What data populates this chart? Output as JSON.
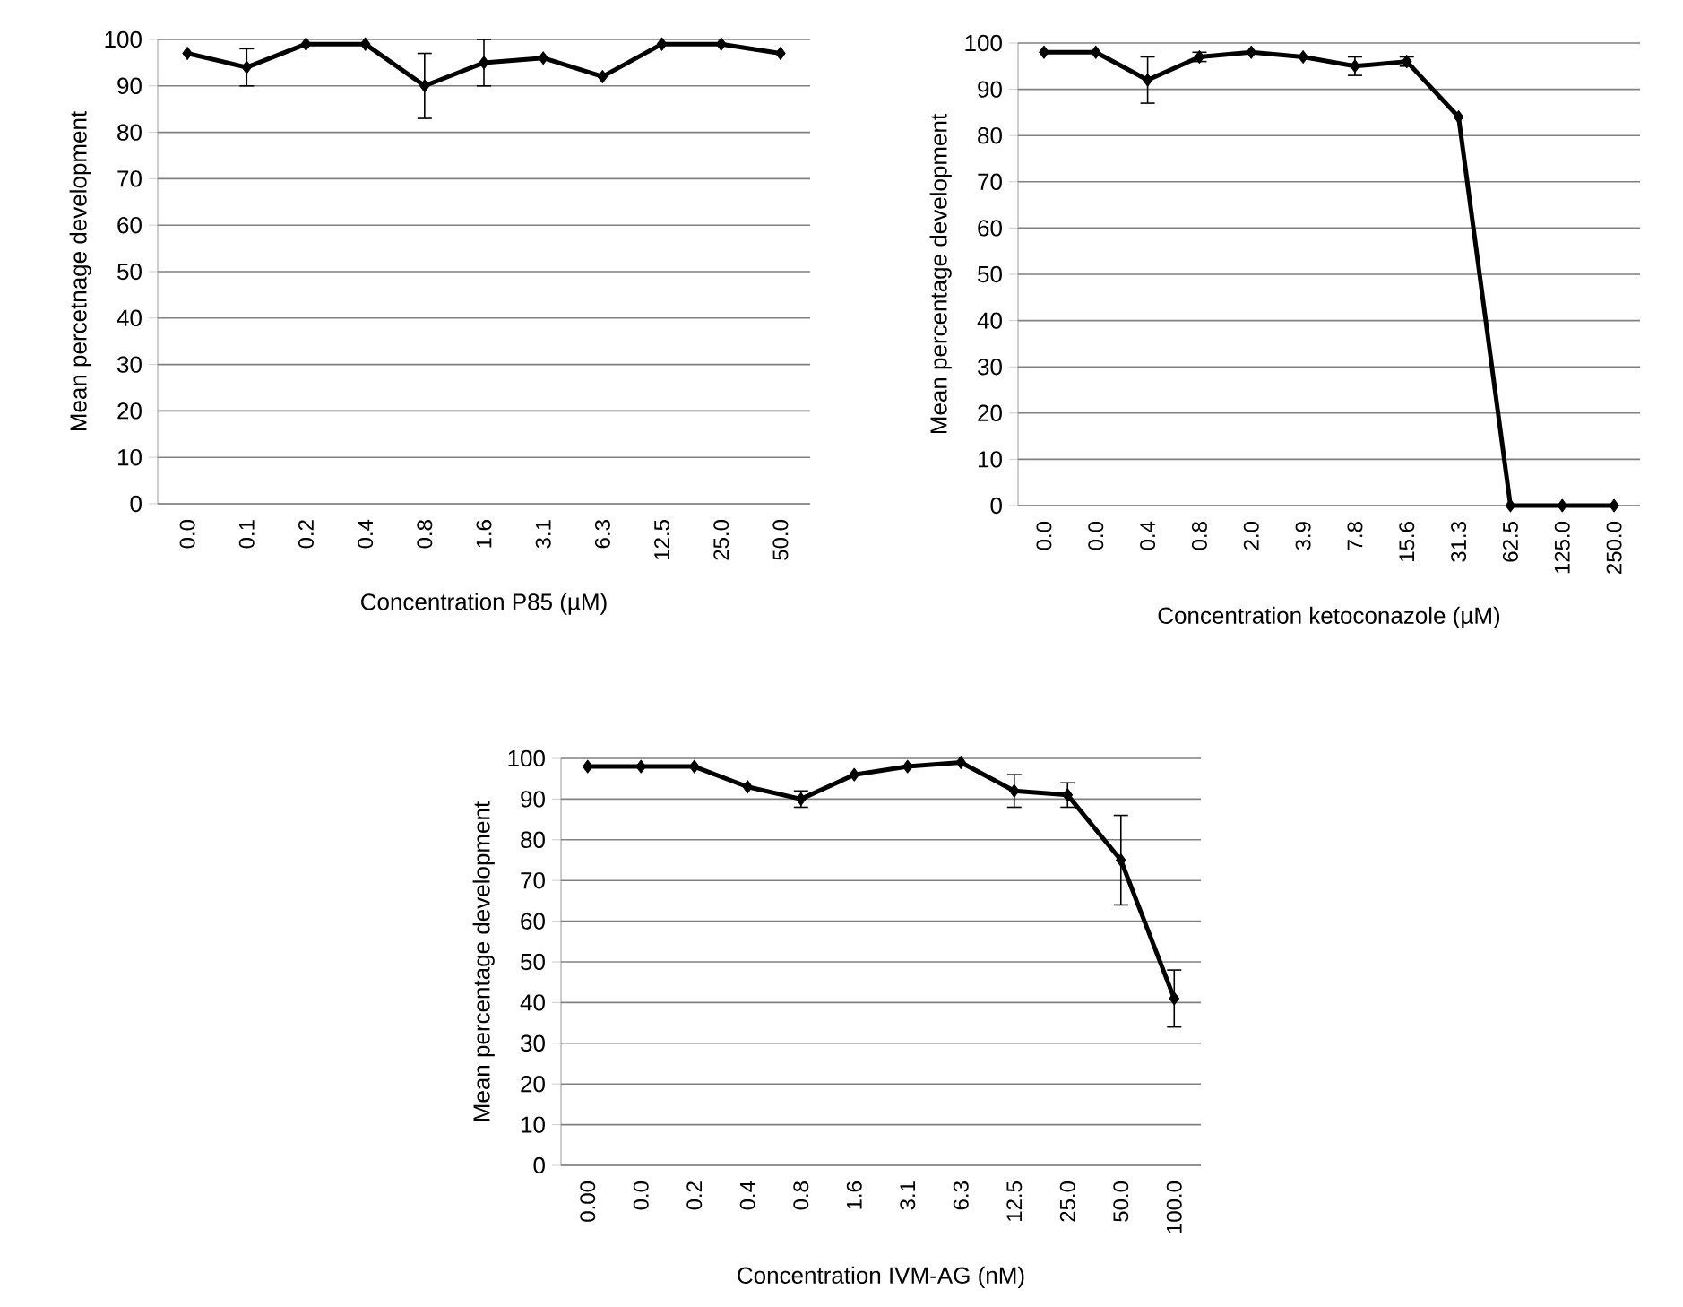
{
  "chart_data": [
    {
      "type": "line",
      "xlabel": "Concentration P85 (µM)",
      "ylabel": "Mean percetnage  development",
      "categories": [
        "0.0",
        "0.1",
        "0.2",
        "0.4",
        "0.8",
        "1.6",
        "3.1",
        "6.3",
        "12.5",
        "25.0",
        "50.0"
      ],
      "values": [
        97,
        94,
        99,
        99,
        90,
        95,
        96,
        92,
        99,
        99,
        97
      ],
      "errors": [
        null,
        4,
        null,
        null,
        7,
        5,
        null,
        null,
        null,
        null,
        null
      ],
      "color": "#000000",
      "ylim": [
        0,
        100
      ],
      "yticks": [
        0,
        10,
        20,
        30,
        40,
        50,
        60,
        70,
        80,
        90,
        100
      ],
      "grid": "y",
      "marker": "diamond"
    },
    {
      "type": "line",
      "xlabel": "Concentration ketoconazole (µM)",
      "ylabel": "Mean percentage  development",
      "categories": [
        "0.0",
        "0.0",
        "0.4",
        "0.8",
        "2.0",
        "3.9",
        "7.8",
        "15.6",
        "31.3",
        "62.5",
        "125.0",
        "250.0"
      ],
      "values": [
        98,
        98,
        92,
        97,
        98,
        97,
        95,
        96,
        84,
        0,
        0,
        0
      ],
      "errors": [
        null,
        null,
        5,
        1,
        null,
        null,
        2,
        1,
        null,
        null,
        null,
        null
      ],
      "color": "#000000",
      "ylim": [
        0,
        100
      ],
      "yticks": [
        0,
        10,
        20,
        30,
        40,
        50,
        60,
        70,
        80,
        90,
        100
      ],
      "grid": "y",
      "marker": "diamond"
    },
    {
      "type": "line",
      "xlabel": "Concentration IVM-AG (nM)",
      "ylabel": "Mean percentage  development",
      "categories": [
        "0.00",
        "0.0",
        "0.2",
        "0.4",
        "0.8",
        "1.6",
        "3.1",
        "6.3",
        "12.5",
        "25.0",
        "50.0",
        "100.0"
      ],
      "values": [
        98,
        98,
        98,
        93,
        90,
        96,
        98,
        99,
        92,
        91,
        75,
        41
      ],
      "errors": [
        null,
        null,
        null,
        null,
        2,
        null,
        null,
        null,
        4,
        3,
        11,
        7
      ],
      "color": "#000000",
      "ylim": [
        0,
        100
      ],
      "yticks": [
        0,
        10,
        20,
        30,
        40,
        50,
        60,
        70,
        80,
        90,
        100
      ],
      "grid": "y",
      "marker": "diamond"
    }
  ]
}
